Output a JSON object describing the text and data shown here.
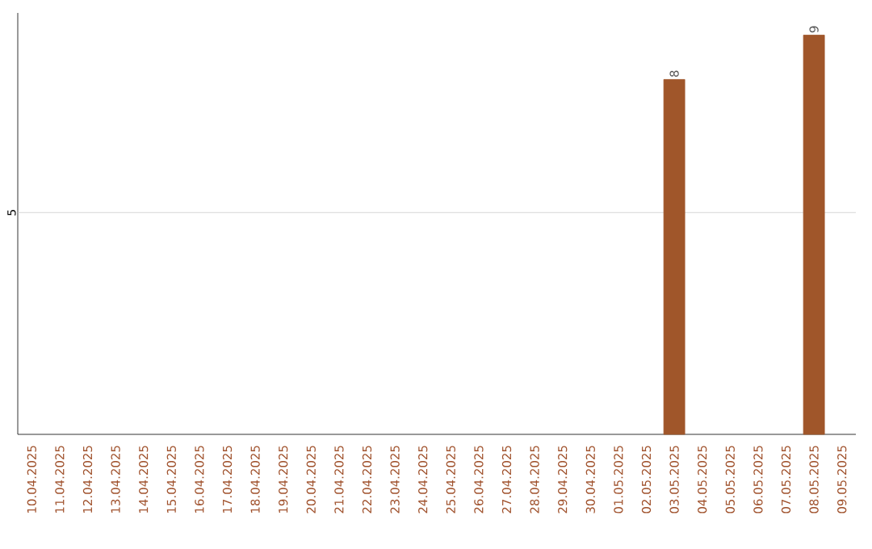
{
  "chart_data": {
    "type": "bar",
    "categories": [
      "10.04.2025",
      "11.04.2025",
      "12.04.2025",
      "13.04.2025",
      "14.04.2025",
      "15.04.2025",
      "16.04.2025",
      "17.04.2025",
      "18.04.2025",
      "19.04.2025",
      "20.04.2025",
      "21.04.2025",
      "22.04.2025",
      "23.04.2025",
      "24.04.2025",
      "25.04.2025",
      "26.04.2025",
      "27.04.2025",
      "28.04.2025",
      "29.04.2025",
      "30.04.2025",
      "01.05.2025",
      "02.05.2025",
      "03.05.2025",
      "04.05.2025",
      "05.05.2025",
      "06.05.2025",
      "07.05.2025",
      "08.05.2025",
      "09.05.2025"
    ],
    "values": [
      null,
      null,
      null,
      null,
      null,
      null,
      null,
      null,
      null,
      null,
      null,
      null,
      null,
      null,
      null,
      null,
      null,
      null,
      null,
      null,
      null,
      null,
      null,
      8,
      null,
      null,
      null,
      null,
      9,
      null
    ],
    "data_labels": true,
    "ylim": [
      0,
      9.5
    ],
    "color": "#a0562a",
    "ref_lines": [
      {
        "axis": "y",
        "value": 5,
        "label": "5",
        "color": "#cccccc"
      }
    ]
  }
}
